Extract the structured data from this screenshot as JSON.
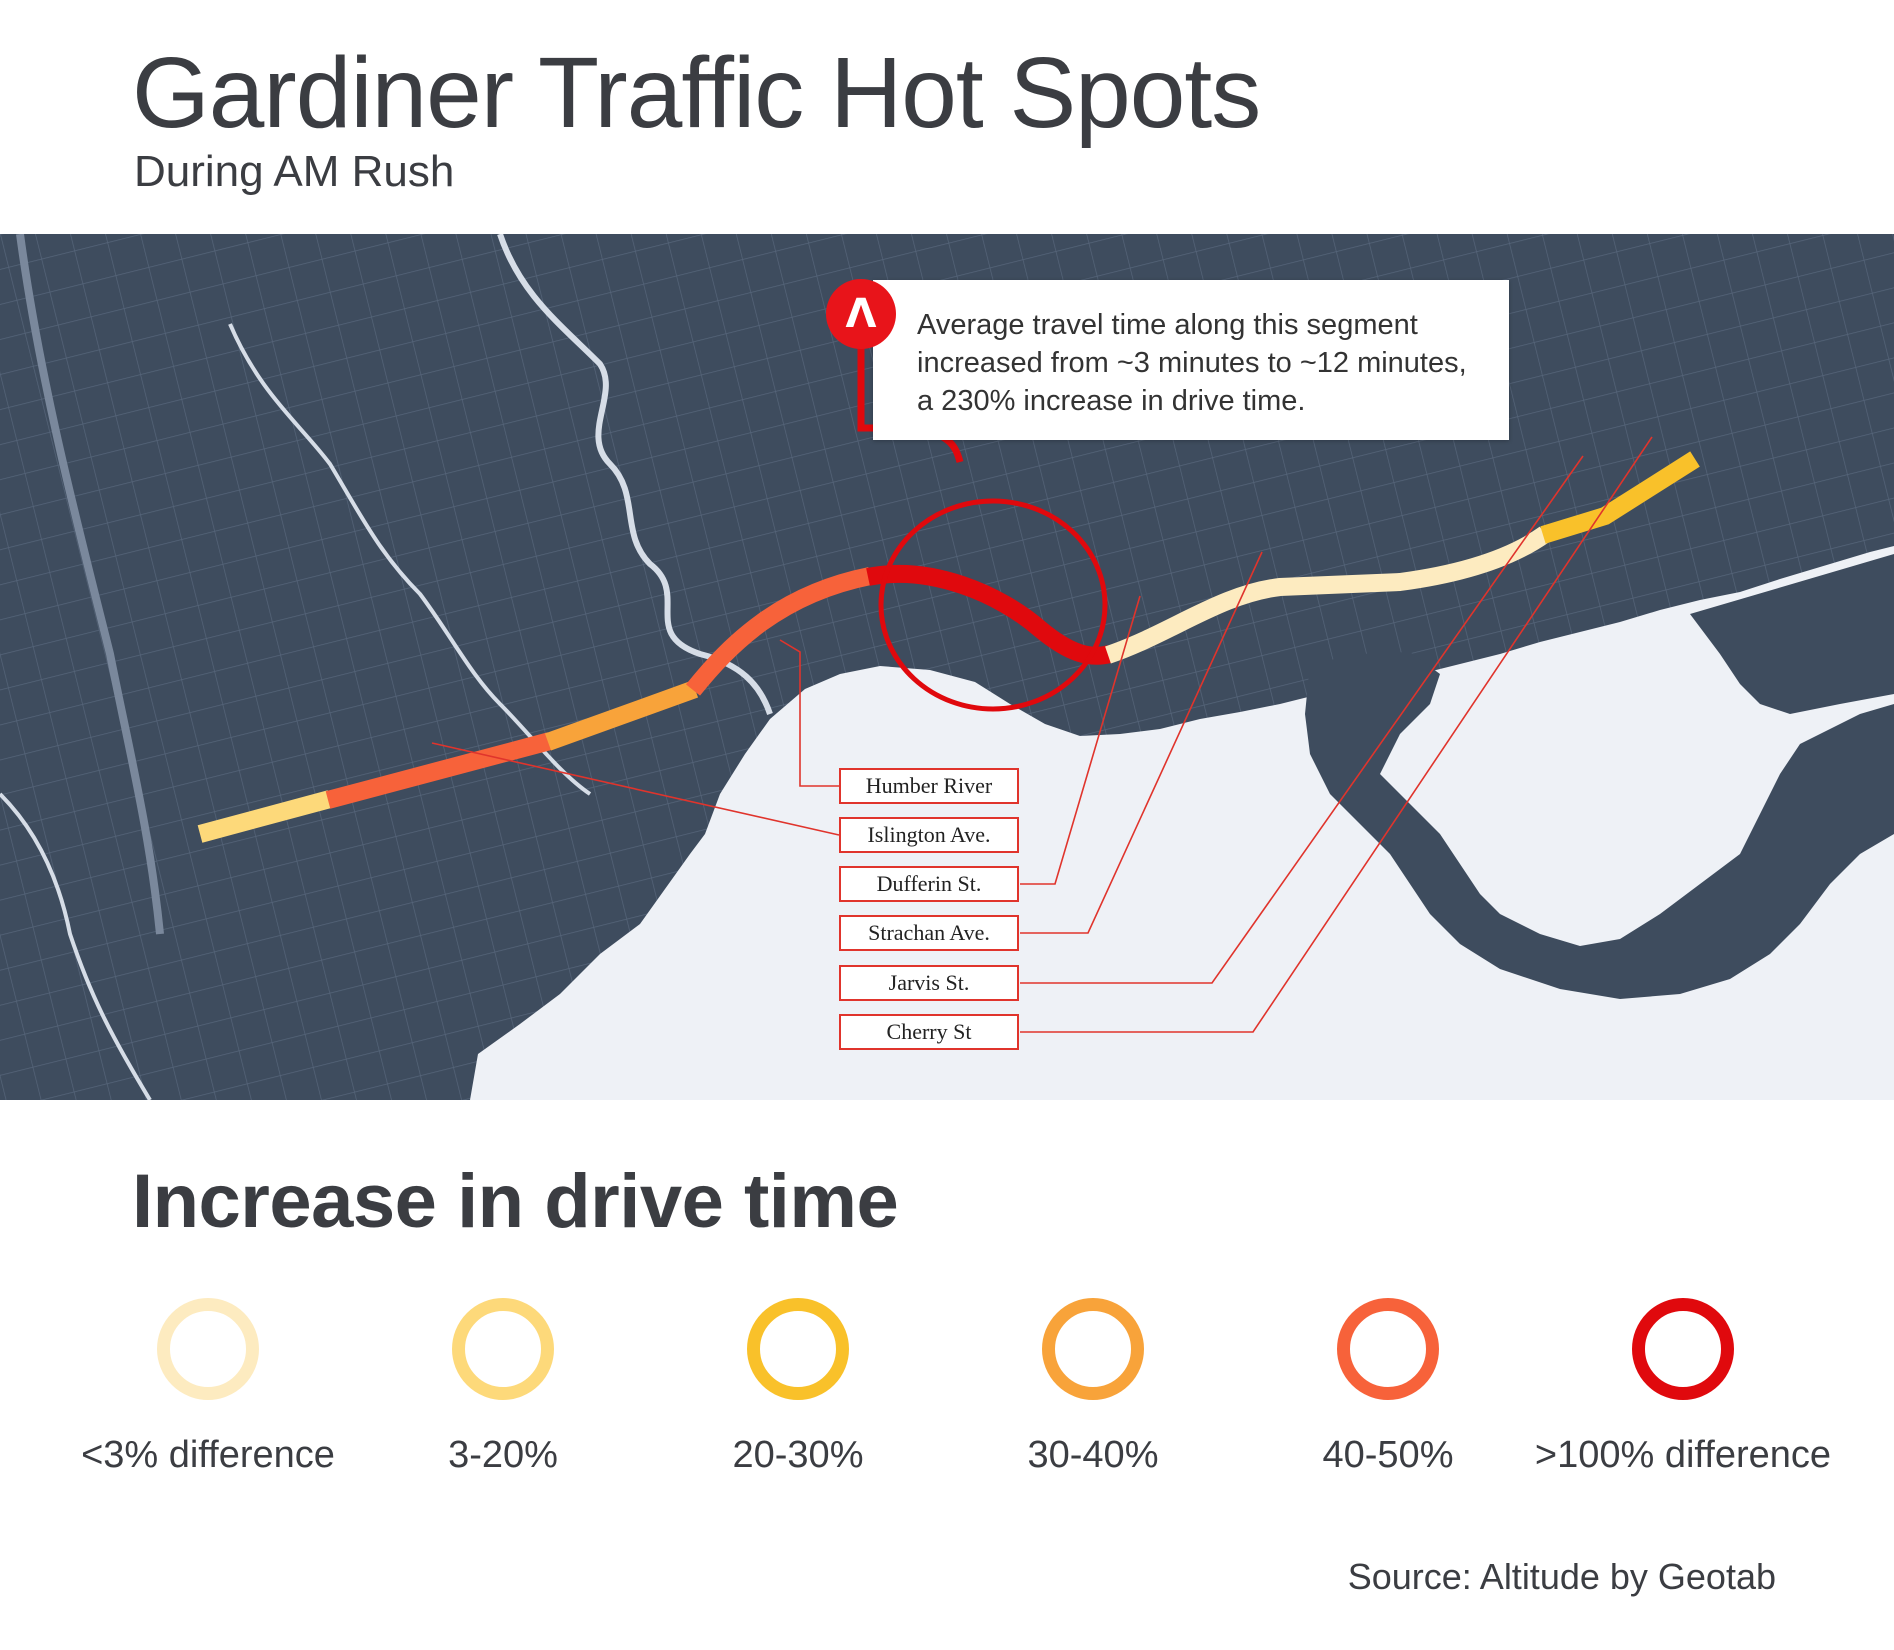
{
  "title": "Gardiner Traffic Hot Spots",
  "subtitle": "During AM Rush",
  "callout": {
    "badge_glyph": "Λ",
    "text": "Average travel time along this segment increased from ~3 minutes to ~12 minutes, a 230% increase in drive time."
  },
  "labels": [
    "Humber River",
    "Islington Ave.",
    "Dufferin St.",
    "Strachan Ave.",
    "Jarvis St.",
    "Cherry St"
  ],
  "legend": {
    "title": "Increase in drive time",
    "items": [
      {
        "label": "<3% difference",
        "color": "#fdebc0"
      },
      {
        "label": "3-20%",
        "color": "#fdd97a"
      },
      {
        "label": "20-30%",
        "color": "#f9c12a"
      },
      {
        "label": "30-40%",
        "color": "#f8a33a"
      },
      {
        "label": "40-50%",
        "color": "#f7623a"
      },
      {
        "label": ">100% difference",
        "color": "#e0090d"
      }
    ]
  },
  "source": "Source: Altitude by Geotab",
  "colors": {
    "land": "#3e4c5e",
    "water": "#eef1f6",
    "leader": "#e0342c"
  }
}
